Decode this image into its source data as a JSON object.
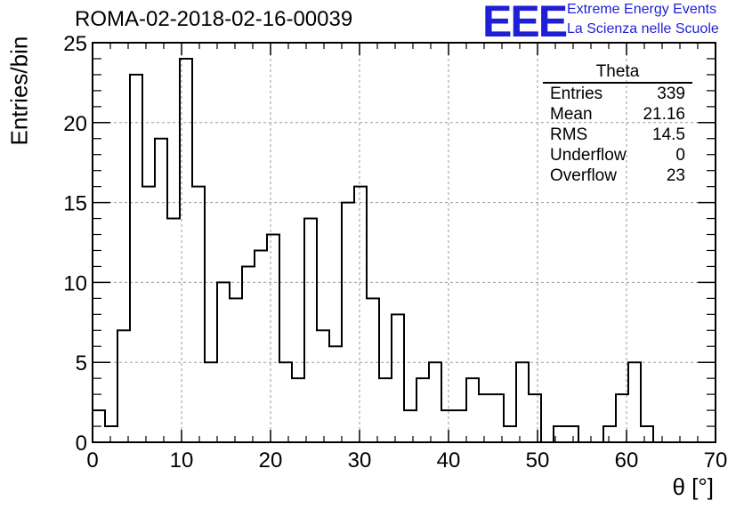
{
  "header": {
    "run_title": "ROMA-02-2018-02-16-00039",
    "logo_text": "EEE",
    "logo_line1": "Extreme Energy Events",
    "logo_line2": "La Scienza nelle Scuole"
  },
  "stats": {
    "title": "Theta",
    "rows": [
      {
        "label": "Entries",
        "value": "339"
      },
      {
        "label": "Mean",
        "value": "21.16"
      },
      {
        "label": "RMS",
        "value": "14.5"
      },
      {
        "label": "Underflow",
        "value": "0"
      },
      {
        "label": "Overflow",
        "value": "23"
      }
    ]
  },
  "colors": {
    "logo": "#1f1fd6",
    "line": "#000000",
    "grid": "#9a9a9a"
  },
  "chart_data": {
    "type": "bar",
    "style": "step-histogram",
    "xlabel": "θ [°]",
    "ylabel": "Entries/bin",
    "xlim": [
      0,
      70
    ],
    "ylim": [
      0,
      25
    ],
    "xticks": [
      0,
      10,
      20,
      30,
      40,
      50,
      60,
      70
    ],
    "yticks": [
      0,
      5,
      10,
      15,
      20,
      25
    ],
    "bin_width": 1.4,
    "bin_start": 0,
    "values": [
      2,
      1,
      7,
      23,
      16,
      19,
      14,
      24,
      16,
      5,
      10,
      9,
      11,
      12,
      13,
      5,
      4,
      14,
      7,
      6,
      15,
      16,
      9,
      4,
      8,
      2,
      4,
      5,
      2,
      2,
      4,
      3,
      3,
      1,
      5,
      3,
      0,
      1,
      1,
      0,
      0,
      1,
      3,
      5,
      1,
      0,
      0,
      0,
      0,
      0
    ],
    "grid": true,
    "stats_box": "top-right"
  }
}
